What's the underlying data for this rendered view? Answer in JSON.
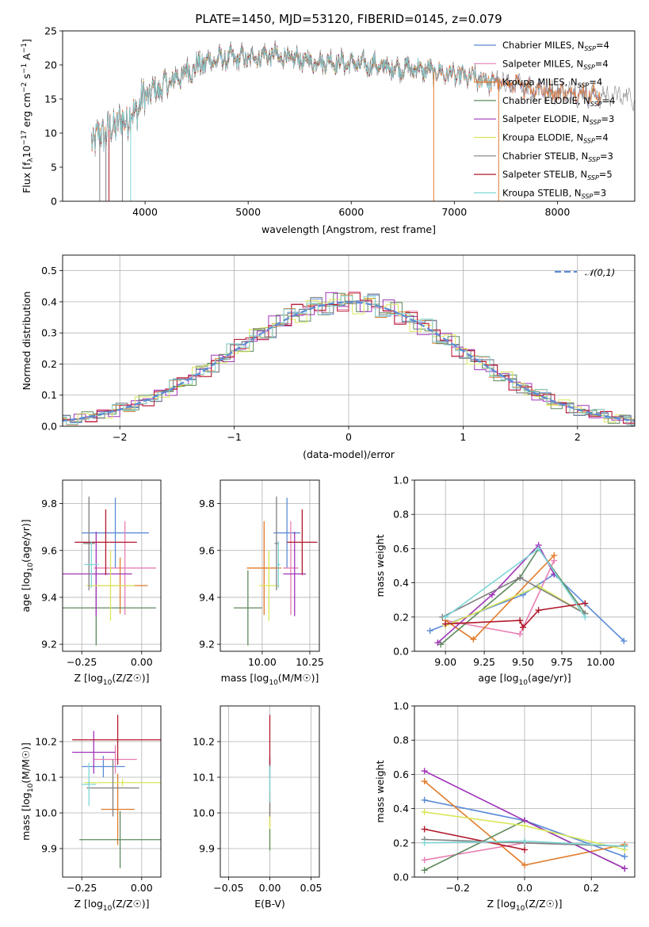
{
  "chart_data": [
    {
      "id": "spectrum",
      "type": "line",
      "title": "PLATE=1450, MJD=53120, FIBERID=0145, z=0.079",
      "xlabel": "wavelength [Angstrom, rest frame]",
      "ylabel": "Flux [f",
      "ylabel_full": "Flux [fλ10⁻¹⁷ erg cm⁻² s⁻¹ A⁻¹]",
      "xlim": [
        3200,
        8750
      ],
      "ylim": [
        0,
        25
      ],
      "xticks": [
        4000,
        5000,
        6000,
        7000,
        8000
      ],
      "yticks": [
        0,
        5,
        10,
        15,
        20,
        25
      ],
      "grid": false,
      "legend_position": "top-right",
      "continuum_anchors": [
        [
          3500,
          9
        ],
        [
          3700,
          11
        ],
        [
          3900,
          13
        ],
        [
          4000,
          15.5
        ],
        [
          4200,
          17
        ],
        [
          4400,
          19
        ],
        [
          4600,
          20.5
        ],
        [
          4800,
          21
        ],
        [
          5000,
          21
        ],
        [
          5200,
          21.5
        ],
        [
          5400,
          21
        ],
        [
          5600,
          20.5
        ],
        [
          5800,
          20.5
        ],
        [
          6000,
          20.2
        ],
        [
          6200,
          20
        ],
        [
          6400,
          19.5
        ],
        [
          6600,
          19.5
        ],
        [
          6800,
          19
        ],
        [
          7000,
          18.5
        ],
        [
          7200,
          18
        ],
        [
          7400,
          17.5
        ],
        [
          7600,
          17
        ],
        [
          7800,
          16.5
        ],
        [
          8000,
          16
        ],
        [
          8200,
          16
        ],
        [
          8400,
          15.5
        ]
      ],
      "series": [
        {
          "name": "Chabrier MILES, N",
          "nssp": "=4",
          "color": "#5b8bd6",
          "xrange": [
            3480,
            8420
          ]
        },
        {
          "name": "Salpeter MILES, N",
          "nssp": "=4",
          "color": "#e87fb4",
          "xrange": [
            3480,
            8420
          ]
        },
        {
          "name": "Kroupa MILES, N",
          "nssp": "=4",
          "color": "#e07b2a",
          "xrange": [
            3480,
            8420
          ]
        },
        {
          "name": "Chabrier ELODIE, N",
          "nssp": "=4",
          "color": "#5e8a5e",
          "xrange": [
            3900,
            6800
          ]
        },
        {
          "name": "Salpeter ELODIE, N",
          "nssp": "=3",
          "color": "#a034b8",
          "xrange": [
            3900,
            6800
          ]
        },
        {
          "name": "Kroupa ELODIE, N",
          "nssp": "=4",
          "color": "#d9e65a",
          "xrange": [
            3900,
            6800
          ]
        },
        {
          "name": "Chabrier STELIB, N",
          "nssp": "=3",
          "color": "#7f7f7f",
          "xrange": [
            3480,
            8750
          ]
        },
        {
          "name": "Salpeter STELIB, N",
          "nssp": "=5",
          "color": "#b2182b",
          "xrange": [
            3480,
            7400
          ]
        },
        {
          "name": "Kroupa STELIB, N",
          "nssp": "=3",
          "color": "#7fd6d6",
          "xrange": [
            3480,
            7400
          ]
        }
      ]
    },
    {
      "id": "residuals",
      "type": "step",
      "xlabel": "(data-model)/error",
      "ylabel": "Normed distribution",
      "xlim": [
        -2.5,
        2.5
      ],
      "ylim": [
        0,
        0.55
      ],
      "xticks": [
        -2,
        -1,
        0,
        1,
        2
      ],
      "yticks": [
        0.0,
        0.1,
        0.2,
        0.3,
        0.4,
        0.5
      ],
      "grid": true,
      "legend_position": "top-right",
      "gaussian_label": "𝒩(0,1)",
      "gaussian_color": "#5b8bd6"
    },
    {
      "id": "z_age",
      "type": "errorbar",
      "xlabel": "Z [log10(Z/Z☉)]",
      "ylabel": "age  [log10(age/yr)]",
      "xlim": [
        -0.33,
        0.08
      ],
      "ylim": [
        9.17,
        9.9
      ],
      "xticks": [
        -0.25,
        0.0
      ],
      "yticks": [
        9.2,
        9.4,
        9.6,
        9.8
      ],
      "grid": true,
      "points": [
        {
          "color": "#5b8bd6",
          "x": -0.11,
          "xerr": 0.14,
          "y": 9.675,
          "yerr": 0.15
        },
        {
          "color": "#e87fb4",
          "x": -0.07,
          "xerr": 0.13,
          "y": 9.525,
          "yerr": 0.2
        },
        {
          "color": "#e07b2a",
          "x": -0.09,
          "xerr": 0.115,
          "y": 9.45,
          "yerr": 0.12
        },
        {
          "color": "#5e8a5e",
          "x": -0.19,
          "xerr": 0.25,
          "y": 9.355,
          "yerr": 0.16
        },
        {
          "color": "#a034b8",
          "x": -0.19,
          "xerr": 0.15,
          "y": 9.5,
          "yerr": 0.18
        },
        {
          "color": "#d9e65a",
          "x": -0.13,
          "xerr": 0.1,
          "y": 9.45,
          "yerr": 0.15
        },
        {
          "color": "#7f7f7f",
          "x": -0.22,
          "xerr": 0.025,
          "y": 9.63,
          "yerr": 0.2
        },
        {
          "color": "#b2182b",
          "x": -0.15,
          "xerr": 0.13,
          "y": 9.635,
          "yerr": 0.14
        },
        {
          "color": "#7fd6d6",
          "x": -0.21,
          "xerr": 0.03,
          "y": 9.54,
          "yerr": 0.1
        }
      ]
    },
    {
      "id": "mass_age",
      "type": "errorbar",
      "xlabel": "mass [log10(M/M☉)]",
      "ylabel": "",
      "xlim": [
        9.78,
        10.3
      ],
      "ylim": [
        9.17,
        9.9
      ],
      "xticks": [
        10.0,
        10.25
      ],
      "yticks": [
        9.2,
        9.4,
        9.6,
        9.8
      ],
      "grid": true,
      "points": [
        {
          "color": "#5b8bd6",
          "x": 10.13,
          "xerr": 0.07,
          "y": 9.675,
          "yerr": 0.15
        },
        {
          "color": "#e87fb4",
          "x": 10.15,
          "xerr": 0.04,
          "y": 9.525,
          "yerr": 0.2
        },
        {
          "color": "#e07b2a",
          "x": 10.01,
          "xerr": 0.09,
          "y": 9.525,
          "yerr": 0.2
        },
        {
          "color": "#5e8a5e",
          "x": 9.925,
          "xerr": 0.075,
          "y": 9.355,
          "yerr": 0.16
        },
        {
          "color": "#a034b8",
          "x": 10.17,
          "xerr": 0.06,
          "y": 9.5,
          "yerr": 0.18
        },
        {
          "color": "#d9e65a",
          "x": 10.035,
          "xerr": 0.05,
          "y": 9.45,
          "yerr": 0.15
        },
        {
          "color": "#7f7f7f",
          "x": 10.075,
          "xerr": 0.01,
          "y": 9.63,
          "yerr": 0.2
        },
        {
          "color": "#b2182b",
          "x": 10.21,
          "xerr": 0.08,
          "y": 9.635,
          "yerr": 0.14
        },
        {
          "color": "#7fd6d6",
          "x": 10.085,
          "xerr": 0.01,
          "y": 9.54,
          "yerr": 0.1
        }
      ]
    },
    {
      "id": "age_weight",
      "type": "line",
      "xlabel": "age  [log10(age/yr)]",
      "ylabel": "mass weight",
      "xlim": [
        8.8,
        10.22
      ],
      "ylim": [
        0,
        1
      ],
      "xticks": [
        9.0,
        9.25,
        9.5,
        9.75,
        10.0
      ],
      "yticks": [
        0.0,
        0.2,
        0.4,
        0.6,
        0.8,
        1.0
      ],
      "grid": true,
      "series": [
        {
          "color": "#5b8bd6",
          "x": [
            8.9,
            9.5,
            9.7,
            10.15
          ],
          "y": [
            0.12,
            0.33,
            0.45,
            0.06
          ]
        },
        {
          "color": "#e87fb4",
          "x": [
            9.0,
            9.48,
            9.7
          ],
          "y": [
            0.18,
            0.1,
            0.53
          ]
        },
        {
          "color": "#e07b2a",
          "x": [
            9.0,
            9.18,
            9.7
          ],
          "y": [
            0.18,
            0.07,
            0.56
          ]
        },
        {
          "color": "#5e8a5e",
          "x": [
            8.97,
            9.48,
            9.6,
            9.9
          ],
          "y": [
            0.04,
            0.43,
            0.6,
            0.22
          ]
        },
        {
          "color": "#a034b8",
          "x": [
            8.95,
            9.3,
            9.6,
            9.7
          ],
          "y": [
            0.05,
            0.33,
            0.62,
            0.45
          ]
        },
        {
          "color": "#d9e65a",
          "x": [
            9.0,
            9.6,
            9.9
          ],
          "y": [
            0.15,
            0.38,
            0.22
          ]
        },
        {
          "color": "#7f7f7f",
          "x": [
            8.98,
            9.48,
            9.9
          ],
          "y": [
            0.2,
            0.43,
            0.22
          ]
        },
        {
          "color": "#b2182b",
          "x": [
            9.0,
            9.48,
            9.5,
            9.6,
            9.9
          ],
          "y": [
            0.16,
            0.18,
            0.14,
            0.24,
            0.28
          ]
        },
        {
          "color": "#7fd6d6",
          "x": [
            9.0,
            9.6,
            9.9
          ],
          "y": [
            0.2,
            0.6,
            0.2
          ]
        }
      ]
    },
    {
      "id": "z_mass",
      "type": "errorbar",
      "xlabel": "Z [log10(Z/Z☉)]",
      "ylabel": "mass [log10(M/M☉)]",
      "xlim": [
        -0.33,
        0.08
      ],
      "ylim": [
        9.82,
        10.3
      ],
      "xticks": [
        -0.25,
        0.0
      ],
      "yticks": [
        9.9,
        10.0,
        10.1,
        10.2
      ],
      "grid": true,
      "points": [
        {
          "color": "#5b8bd6",
          "x": -0.16,
          "xerr": 0.09,
          "y": 10.13,
          "yerr": 0.03
        },
        {
          "color": "#e87fb4",
          "x": -0.11,
          "xerr": 0.09,
          "y": 10.15,
          "yerr": 0.04
        },
        {
          "color": "#e07b2a",
          "x": -0.1,
          "xerr": 0.07,
          "y": 10.01,
          "yerr": 0.1
        },
        {
          "color": "#5e8a5e",
          "x": -0.09,
          "xerr": 0.17,
          "y": 9.925,
          "yerr": 0.08
        },
        {
          "color": "#a034b8",
          "x": -0.2,
          "xerr": 0.09,
          "y": 10.17,
          "yerr": 0.06
        },
        {
          "color": "#d9e65a",
          "x": -0.08,
          "xerr": 0.16,
          "y": 10.085,
          "yerr": 0.01
        },
        {
          "color": "#7f7f7f",
          "x": -0.12,
          "xerr": 0.11,
          "y": 10.07,
          "yerr": 0.08
        },
        {
          "color": "#b2182b",
          "x": -0.1,
          "xerr": 0.19,
          "y": 10.205,
          "yerr": 0.07
        },
        {
          "color": "#7fd6d6",
          "x": -0.22,
          "xerr": 0.03,
          "y": 10.08,
          "yerr": 0.06
        }
      ]
    },
    {
      "id": "ebv_mass",
      "type": "errorbar",
      "xlabel": "E(B-V)",
      "ylabel": "",
      "xlim": [
        -0.06,
        0.06
      ],
      "ylim": [
        9.82,
        10.3
      ],
      "xticks": [
        -0.05,
        0.0,
        0.05
      ],
      "yticks": [
        9.9,
        10.0,
        10.1,
        10.2
      ],
      "grid": true,
      "points": [
        {
          "color": "#5b8bd6",
          "x": 0,
          "xerr": 0,
          "y": 10.13,
          "yerr": 0.03
        },
        {
          "color": "#e07b2a",
          "x": 0,
          "xerr": 0,
          "y": 10.01,
          "yerr": 0.05
        },
        {
          "color": "#d9e65a",
          "x": 0,
          "xerr": 0,
          "y": 9.95,
          "yerr": 0.05
        },
        {
          "color": "#5e8a5e",
          "x": 0,
          "xerr": 0,
          "y": 9.925,
          "yerr": 0.03
        },
        {
          "color": "#7f7f7f",
          "x": 0,
          "xerr": 0,
          "y": 10.07,
          "yerr": 0.08
        },
        {
          "color": "#b2182b",
          "x": 0,
          "xerr": 0,
          "y": 10.205,
          "yerr": 0.07
        },
        {
          "color": "#7fd6d6",
          "x": 0,
          "xerr": 0,
          "y": 10.08,
          "yerr": 0.05
        }
      ]
    },
    {
      "id": "z_weight",
      "type": "line",
      "xlabel": "Z [log10(Z/Z☉)]",
      "ylabel": "mass weight",
      "xlim": [
        -0.33,
        0.33
      ],
      "ylim": [
        0,
        1
      ],
      "xticks": [
        -0.2,
        0.0,
        0.2
      ],
      "yticks": [
        0.0,
        0.2,
        0.4,
        0.6,
        0.8,
        1.0
      ],
      "grid": true,
      "series": [
        {
          "color": "#5b8bd6",
          "x": [
            -0.3,
            0.0,
            0.3
          ],
          "y": [
            0.45,
            0.33,
            0.12
          ]
        },
        {
          "color": "#e87fb4",
          "x": [
            -0.3,
            0.0,
            0.3
          ],
          "y": [
            0.1,
            0.2,
            0.18
          ]
        },
        {
          "color": "#e07b2a",
          "x": [
            -0.3,
            0.0,
            0.3
          ],
          "y": [
            0.56,
            0.07,
            0.19
          ]
        },
        {
          "color": "#5e8a5e",
          "x": [
            -0.3,
            0.0,
            0.3
          ],
          "y": [
            0.04,
            0.33,
            0.05
          ]
        },
        {
          "color": "#a034b8",
          "x": [
            -0.3,
            0.0,
            0.3
          ],
          "y": [
            0.62,
            0.33,
            0.05
          ]
        },
        {
          "color": "#d9e65a",
          "x": [
            -0.3,
            0.0,
            0.3
          ],
          "y": [
            0.38,
            0.3,
            0.16
          ]
        },
        {
          "color": "#7f7f7f",
          "x": [
            -0.3,
            0.0,
            0.3
          ],
          "y": [
            0.22,
            0.2,
            0.18
          ]
        },
        {
          "color": "#b2182b",
          "x": [
            -0.3,
            0.0
          ],
          "y": [
            0.28,
            0.16
          ]
        },
        {
          "color": "#7fd6d6",
          "x": [
            -0.3,
            0.0,
            0.3
          ],
          "y": [
            0.2,
            0.21,
            0.18
          ]
        }
      ]
    }
  ],
  "layout_note_subscript": "SSP"
}
